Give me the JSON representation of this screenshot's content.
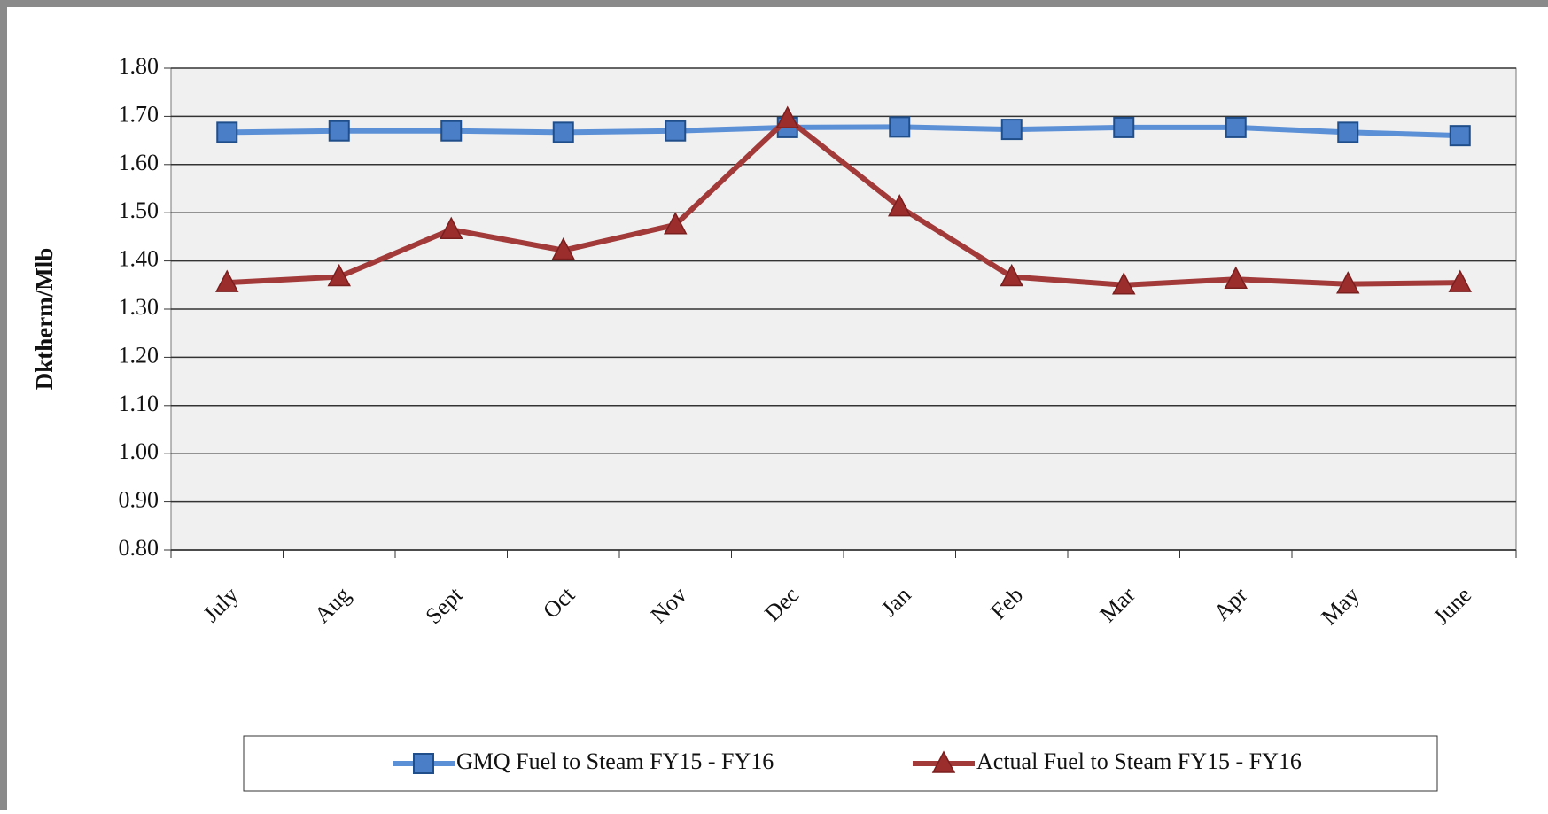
{
  "chart_data": {
    "type": "line",
    "y_label": "Dktherm/Mlb",
    "categories": [
      "July",
      "Aug",
      "Sept",
      "Oct",
      "Nov",
      "Dec",
      "Jan",
      "Feb",
      "Mar",
      "Apr",
      "May",
      "June"
    ],
    "series": [
      {
        "name": "GMQ Fuel to Steam FY15 - FY16",
        "color": "#5b8fd6",
        "marker": "square",
        "values": [
          1.667,
          1.67,
          1.67,
          1.667,
          1.67,
          1.677,
          1.678,
          1.673,
          1.677,
          1.677,
          1.667,
          1.66
        ]
      },
      {
        "name": "Actual Fuel to Steam FY15 - FY16",
        "color": "#a33a3a",
        "marker": "triangle",
        "values": [
          1.355,
          1.367,
          1.465,
          1.422,
          1.475,
          1.695,
          1.512,
          1.367,
          1.35,
          1.362,
          1.352,
          1.355
        ]
      }
    ],
    "ylim": [
      0.8,
      1.8
    ],
    "yticks": [
      {
        "value": 0.8,
        "label": "0.80"
      },
      {
        "value": 0.9,
        "label": "0.90"
      },
      {
        "value": 1.0,
        "label": "1.00"
      },
      {
        "value": 1.1,
        "label": "1.10"
      },
      {
        "value": 1.2,
        "label": "1.20"
      },
      {
        "value": 1.3,
        "label": "1.30"
      },
      {
        "value": 1.4,
        "label": "1.40"
      },
      {
        "value": 1.5,
        "label": "1.50"
      },
      {
        "value": 1.6,
        "label": "1.60"
      },
      {
        "value": 1.7,
        "label": "1.70"
      },
      {
        "value": 1.8,
        "label": "1.80"
      }
    ],
    "grid": true
  }
}
